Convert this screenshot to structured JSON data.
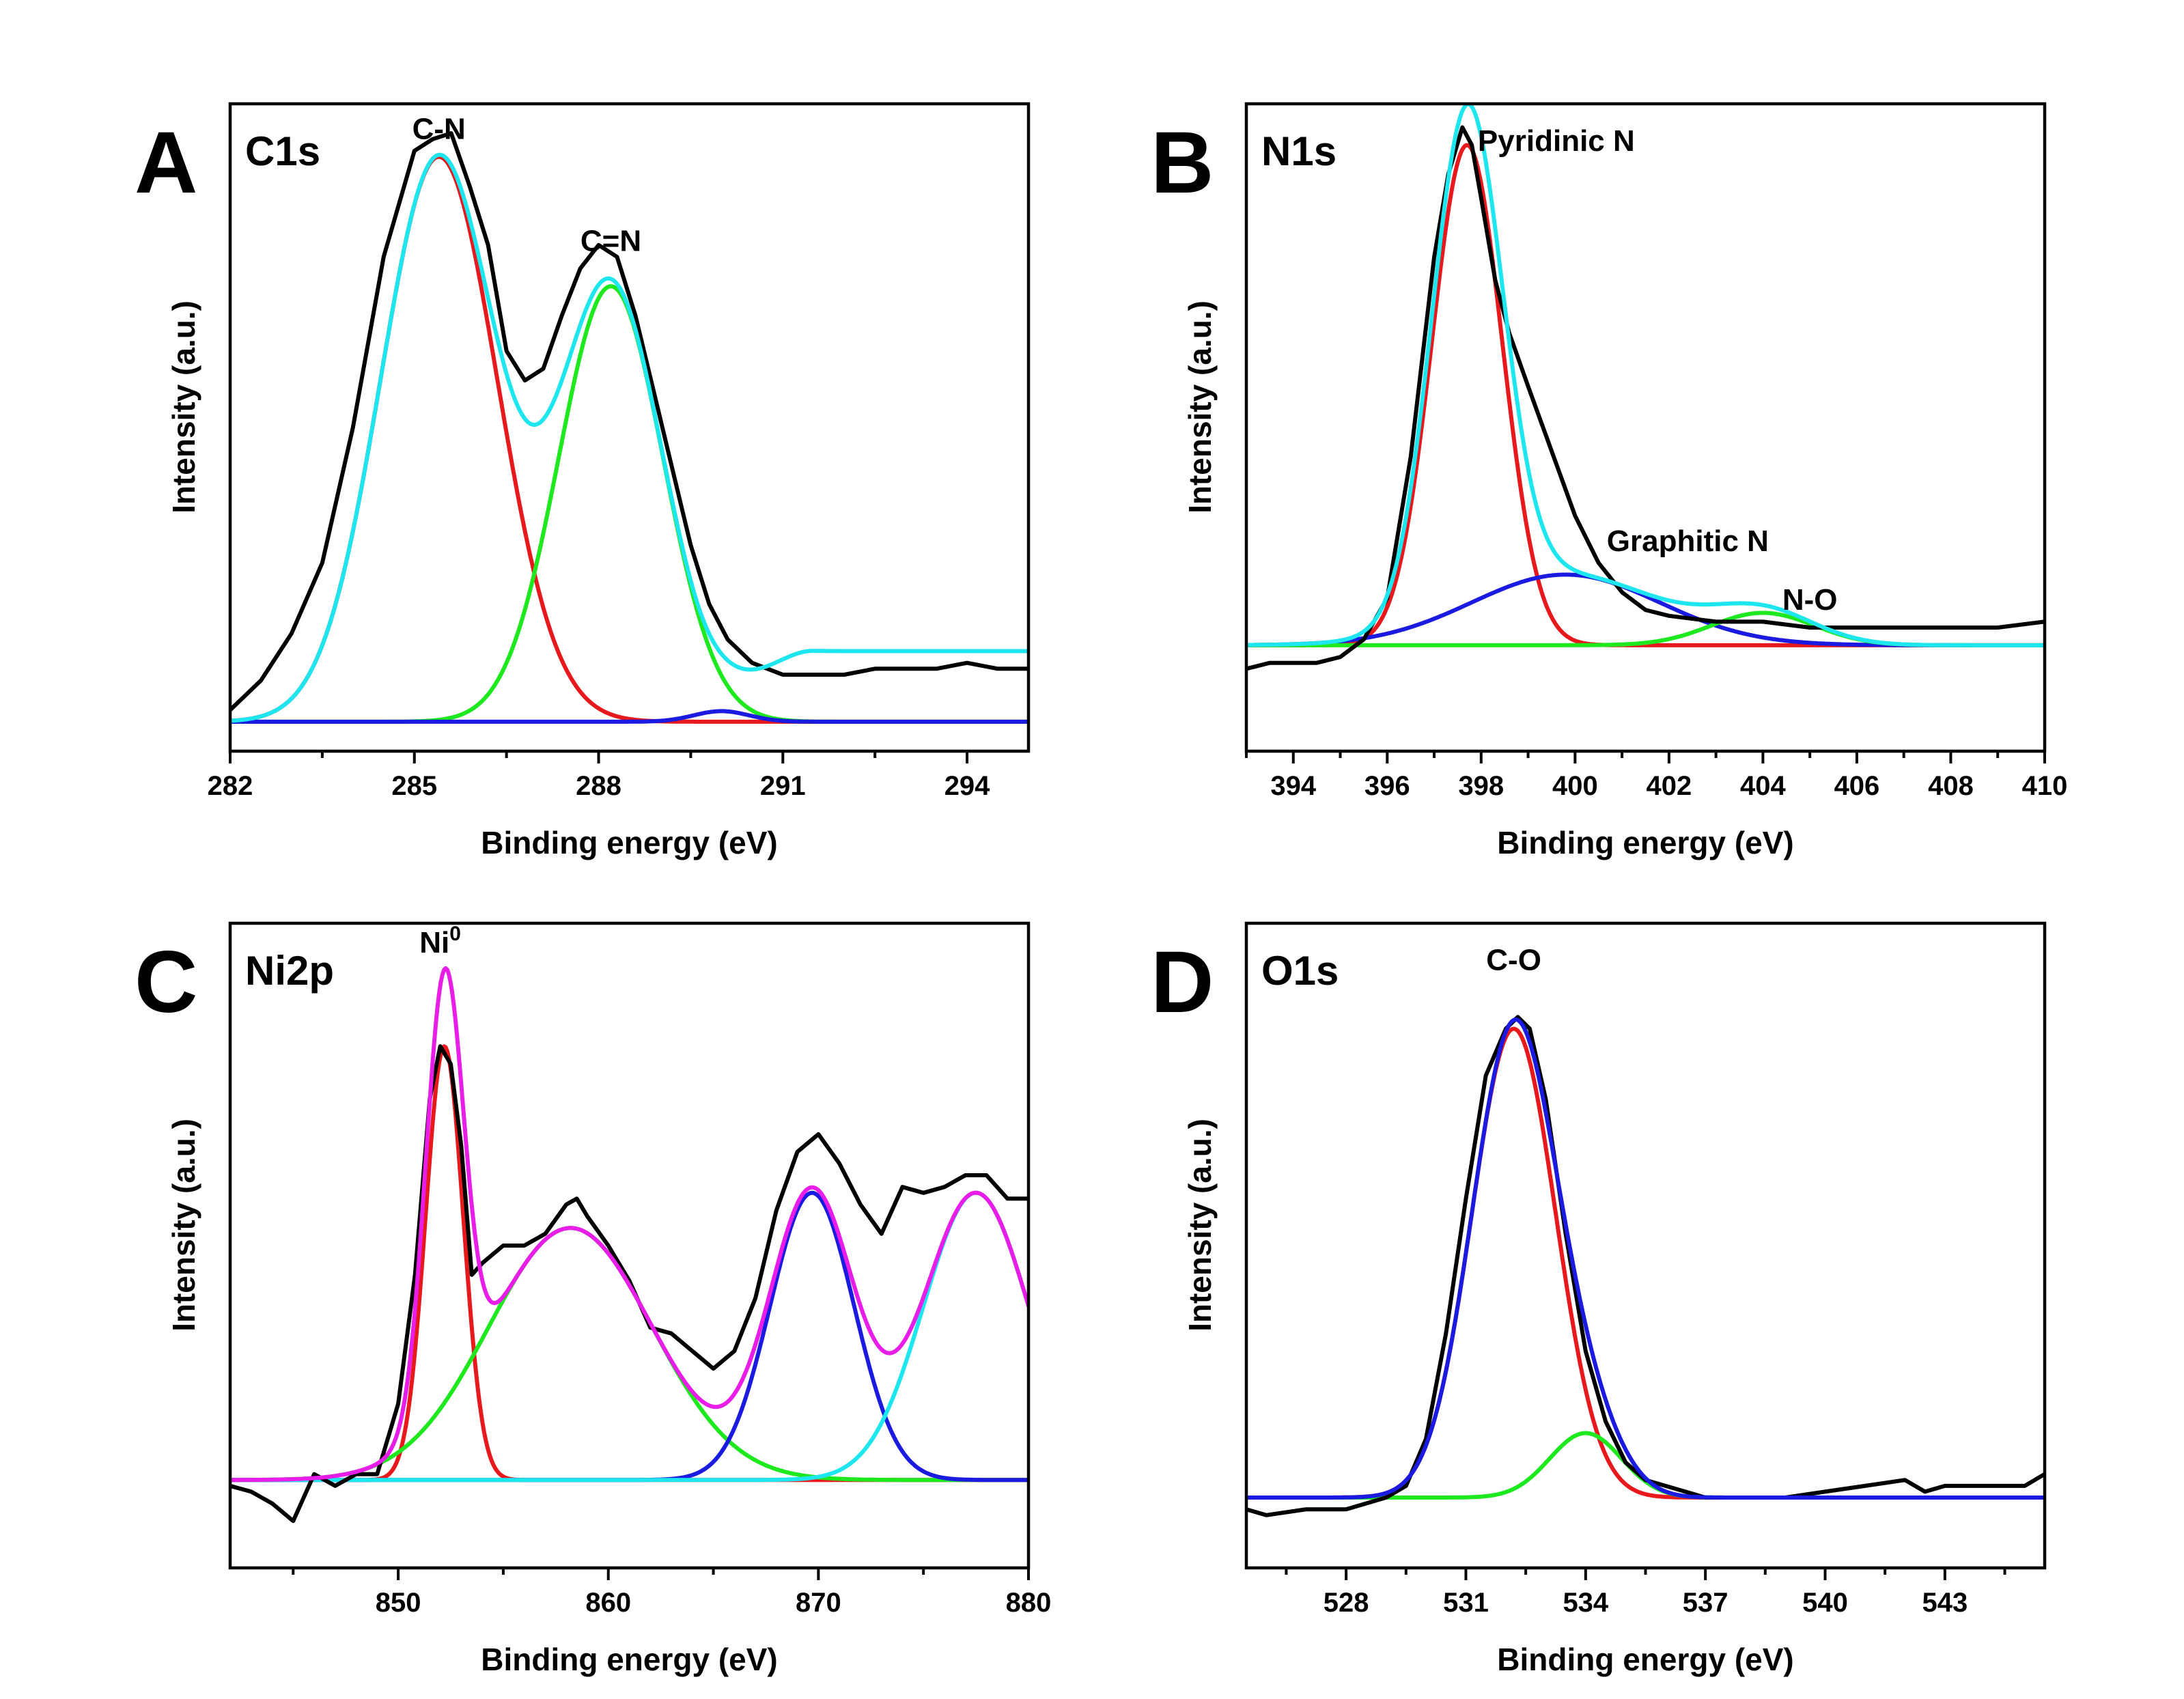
{
  "chart_data": [
    {
      "type": "line",
      "panel_letter": "A",
      "title": "C1s",
      "xlabel": "Binding energy (eV)",
      "ylabel": "Intensity (a.u.)",
      "xlim": [
        282,
        295
      ],
      "ylim": [
        0,
        1.1
      ],
      "xticks": [
        282,
        285,
        288,
        291,
        294
      ],
      "xtick_labels": [
        "282",
        "285",
        "288",
        "291",
        "294"
      ],
      "minor_xticks": [
        283.5,
        286.5,
        289.5,
        292.5
      ],
      "baseline": 0.05,
      "annotations": [
        {
          "text": "C-N",
          "x": 285.4,
          "y": 1.04
        },
        {
          "text": "C=N",
          "x": 288.2,
          "y": 0.85
        }
      ],
      "components": [
        {
          "name": "C-N",
          "color": "#e8191c",
          "center": 285.4,
          "height": 0.96,
          "sigma": 0.95
        },
        {
          "name": "C=N",
          "color": "#1ee81e",
          "center": 288.2,
          "height": 0.74,
          "sigma": 0.85
        },
        {
          "name": "minor",
          "color": "#1a1ae0",
          "center": 290.0,
          "height": 0.018,
          "sigma": 0.45
        }
      ],
      "fit": {
        "name": "envelope",
        "color": "#1ee6ee",
        "extra_background": [
          {
            "start": 289.5,
            "end": 291.5,
            "amount": 0.12
          }
        ]
      },
      "raw": {
        "name": "experimental",
        "color": "#000000",
        "x": [
          282.0,
          282.5,
          283.0,
          283.5,
          284.0,
          284.5,
          285.0,
          285.3,
          285.6,
          285.9,
          286.2,
          286.5,
          286.8,
          287.1,
          287.4,
          287.7,
          288.0,
          288.3,
          288.6,
          288.9,
          289.2,
          289.5,
          289.8,
          290.1,
          290.5,
          291.0,
          291.5,
          292.0,
          292.5,
          293.0,
          293.5,
          294.0,
          294.5,
          295.0
        ],
        "y": [
          0.07,
          0.12,
          0.2,
          0.32,
          0.55,
          0.84,
          1.02,
          1.04,
          1.05,
          0.96,
          0.86,
          0.68,
          0.63,
          0.65,
          0.74,
          0.82,
          0.86,
          0.84,
          0.74,
          0.61,
          0.48,
          0.35,
          0.25,
          0.19,
          0.15,
          0.13,
          0.13,
          0.13,
          0.14,
          0.14,
          0.14,
          0.15,
          0.14,
          0.14
        ]
      }
    },
    {
      "type": "line",
      "panel_letter": "B",
      "title": "N1s",
      "xlabel": "Binding energy (eV)",
      "ylabel": "Intensity (a.u.)",
      "xlim": [
        393,
        410
      ],
      "ylim": [
        0,
        1.1
      ],
      "xticks": [
        394,
        396,
        398,
        400,
        402,
        404,
        406,
        408,
        410
      ],
      "xtick_labels": [
        "394",
        "396",
        "398",
        "400",
        "402",
        "404",
        "406",
        "408",
        "410"
      ],
      "minor_xticks": [
        393,
        395,
        397,
        399,
        401,
        403,
        405,
        407,
        409
      ],
      "baseline": 0.18,
      "annotations": [
        {
          "text": "Pyridinic N",
          "x": 399.6,
          "y": 1.02
        },
        {
          "text": "Graphitic N",
          "x": 402.4,
          "y": 0.34
        },
        {
          "text": "N-O",
          "x": 405.0,
          "y": 0.24
        }
      ],
      "components": [
        {
          "name": "Pyridinic N",
          "color": "#e8191c",
          "center": 397.7,
          "height": 0.85,
          "sigma": 0.75
        },
        {
          "name": "Graphitic N",
          "color": "#1a1ae0",
          "center": 399.8,
          "height": 0.12,
          "sigma": 2.0
        },
        {
          "name": "N-O",
          "color": "#1ee81e",
          "center": 404.0,
          "height": 0.055,
          "sigma": 1.1
        }
      ],
      "fit": {
        "name": "envelope",
        "color": "#1ee6ee",
        "extra_background": []
      },
      "raw": {
        "name": "experimental",
        "color": "#000000",
        "x": [
          393.0,
          393.5,
          394.0,
          394.5,
          395.0,
          395.5,
          396.0,
          396.5,
          397.0,
          397.3,
          397.6,
          397.8,
          398.0,
          398.3,
          398.6,
          399.0,
          399.5,
          400.0,
          400.5,
          401.0,
          401.5,
          402.0,
          403.0,
          404.0,
          405.0,
          406.0,
          407.0,
          408.0,
          409.0,
          410.0
        ],
        "y": [
          0.14,
          0.15,
          0.15,
          0.15,
          0.16,
          0.19,
          0.26,
          0.5,
          0.84,
          0.98,
          1.06,
          1.03,
          0.94,
          0.8,
          0.71,
          0.62,
          0.51,
          0.4,
          0.32,
          0.27,
          0.24,
          0.23,
          0.22,
          0.22,
          0.21,
          0.21,
          0.21,
          0.21,
          0.21,
          0.22
        ]
      }
    },
    {
      "type": "line",
      "panel_letter": "C",
      "title": "Ni2p",
      "xlabel": "Binding energy (eV)",
      "ylabel": "Intensity (a.u.)",
      "xlim": [
        842,
        880
      ],
      "ylim": [
        0,
        1.1
      ],
      "xticks": [
        850,
        860,
        870,
        880
      ],
      "xtick_labels": [
        "850",
        "860",
        "870",
        "880"
      ],
      "minor_xticks": [
        845,
        855,
        865,
        875
      ],
      "baseline": 0.15,
      "annotations": [
        {
          "text": "Ni",
          "superscript": "0",
          "x": 852.0,
          "y": 1.05
        }
      ],
      "components": [
        {
          "name": "Ni0",
          "color": "#e8191c",
          "center": 852.2,
          "height": 0.74,
          "sigma": 0.9
        },
        {
          "name": "satellite",
          "color": "#1ee81e",
          "center": 858.2,
          "height": 0.43,
          "sigma": 3.9
        },
        {
          "name": "Ni 2p1/2",
          "color": "#1a1ae0",
          "center": 869.7,
          "height": 0.49,
          "sigma": 2.0
        },
        {
          "name": "satellite 2",
          "color": "#1ee6ee",
          "center": 877.5,
          "height": 0.49,
          "sigma": 2.5
        }
      ],
      "fit": {
        "name": "envelope",
        "color": "#e81ee8",
        "extra_background": []
      },
      "raw": {
        "name": "experimental",
        "color": "#000000",
        "x": [
          842.0,
          843.0,
          844.0,
          845.0,
          846.0,
          847.0,
          848.0,
          849.0,
          850.0,
          850.8,
          851.5,
          852.0,
          852.5,
          853.0,
          853.5,
          854.0,
          855.0,
          856.0,
          857.0,
          858.0,
          858.5,
          859.0,
          860.0,
          861.0,
          862.0,
          863.0,
          864.0,
          865.0,
          866.0,
          867.0,
          868.0,
          869.0,
          870.0,
          871.0,
          872.0,
          873.0,
          874.0,
          875.0,
          876.0,
          877.0,
          878.0,
          879.0,
          880.0
        ],
        "y": [
          0.14,
          0.13,
          0.11,
          0.08,
          0.16,
          0.14,
          0.16,
          0.16,
          0.28,
          0.5,
          0.8,
          0.89,
          0.86,
          0.72,
          0.5,
          0.52,
          0.55,
          0.55,
          0.57,
          0.62,
          0.63,
          0.6,
          0.55,
          0.49,
          0.41,
          0.4,
          0.37,
          0.34,
          0.37,
          0.46,
          0.61,
          0.71,
          0.74,
          0.69,
          0.62,
          0.57,
          0.65,
          0.64,
          0.65,
          0.67,
          0.67,
          0.63,
          0.63
        ]
      }
    },
    {
      "type": "line",
      "panel_letter": "D",
      "title": "O1s",
      "xlabel": "Binding energy (eV)",
      "ylabel": "Intensity (a.u.)",
      "xlim": [
        525.5,
        545.5
      ],
      "ylim": [
        0,
        1.1
      ],
      "xticks": [
        528,
        531,
        534,
        537,
        540,
        543
      ],
      "xtick_labels": [
        "528",
        "531",
        "534",
        "537",
        "540",
        "543"
      ],
      "minor_xticks": [
        526.5,
        529.5,
        532.5,
        535.5,
        538.5,
        541.5,
        544.5
      ],
      "baseline": 0.12,
      "annotations": [
        {
          "text": "C-O",
          "x": 532.2,
          "y": 1.02
        }
      ],
      "components": [
        {
          "name": "C-O",
          "color": "#e8191c",
          "center": 532.2,
          "height": 0.8,
          "sigma": 1.05
        },
        {
          "name": "minor",
          "color": "#1ee81e",
          "center": 534.0,
          "height": 0.11,
          "sigma": 0.9
        }
      ],
      "fit": {
        "name": "envelope",
        "color": "#1a1ae0",
        "extra_background": []
      },
      "raw": {
        "name": "experimental",
        "color": "#000000",
        "x": [
          525.5,
          526.0,
          527.0,
          528.0,
          529.0,
          529.5,
          530.0,
          530.5,
          531.0,
          531.5,
          532.0,
          532.3,
          532.6,
          533.0,
          533.5,
          534.0,
          534.5,
          535.0,
          535.5,
          536.0,
          536.5,
          537.0,
          538.0,
          539.0,
          540.0,
          541.0,
          542.0,
          542.5,
          543.0,
          544.0,
          545.0,
          545.5
        ],
        "y": [
          0.1,
          0.09,
          0.1,
          0.1,
          0.12,
          0.14,
          0.22,
          0.4,
          0.63,
          0.84,
          0.92,
          0.94,
          0.92,
          0.8,
          0.57,
          0.37,
          0.25,
          0.18,
          0.15,
          0.14,
          0.13,
          0.12,
          0.12,
          0.12,
          0.13,
          0.14,
          0.15,
          0.13,
          0.14,
          0.14,
          0.14,
          0.16
        ]
      }
    }
  ]
}
